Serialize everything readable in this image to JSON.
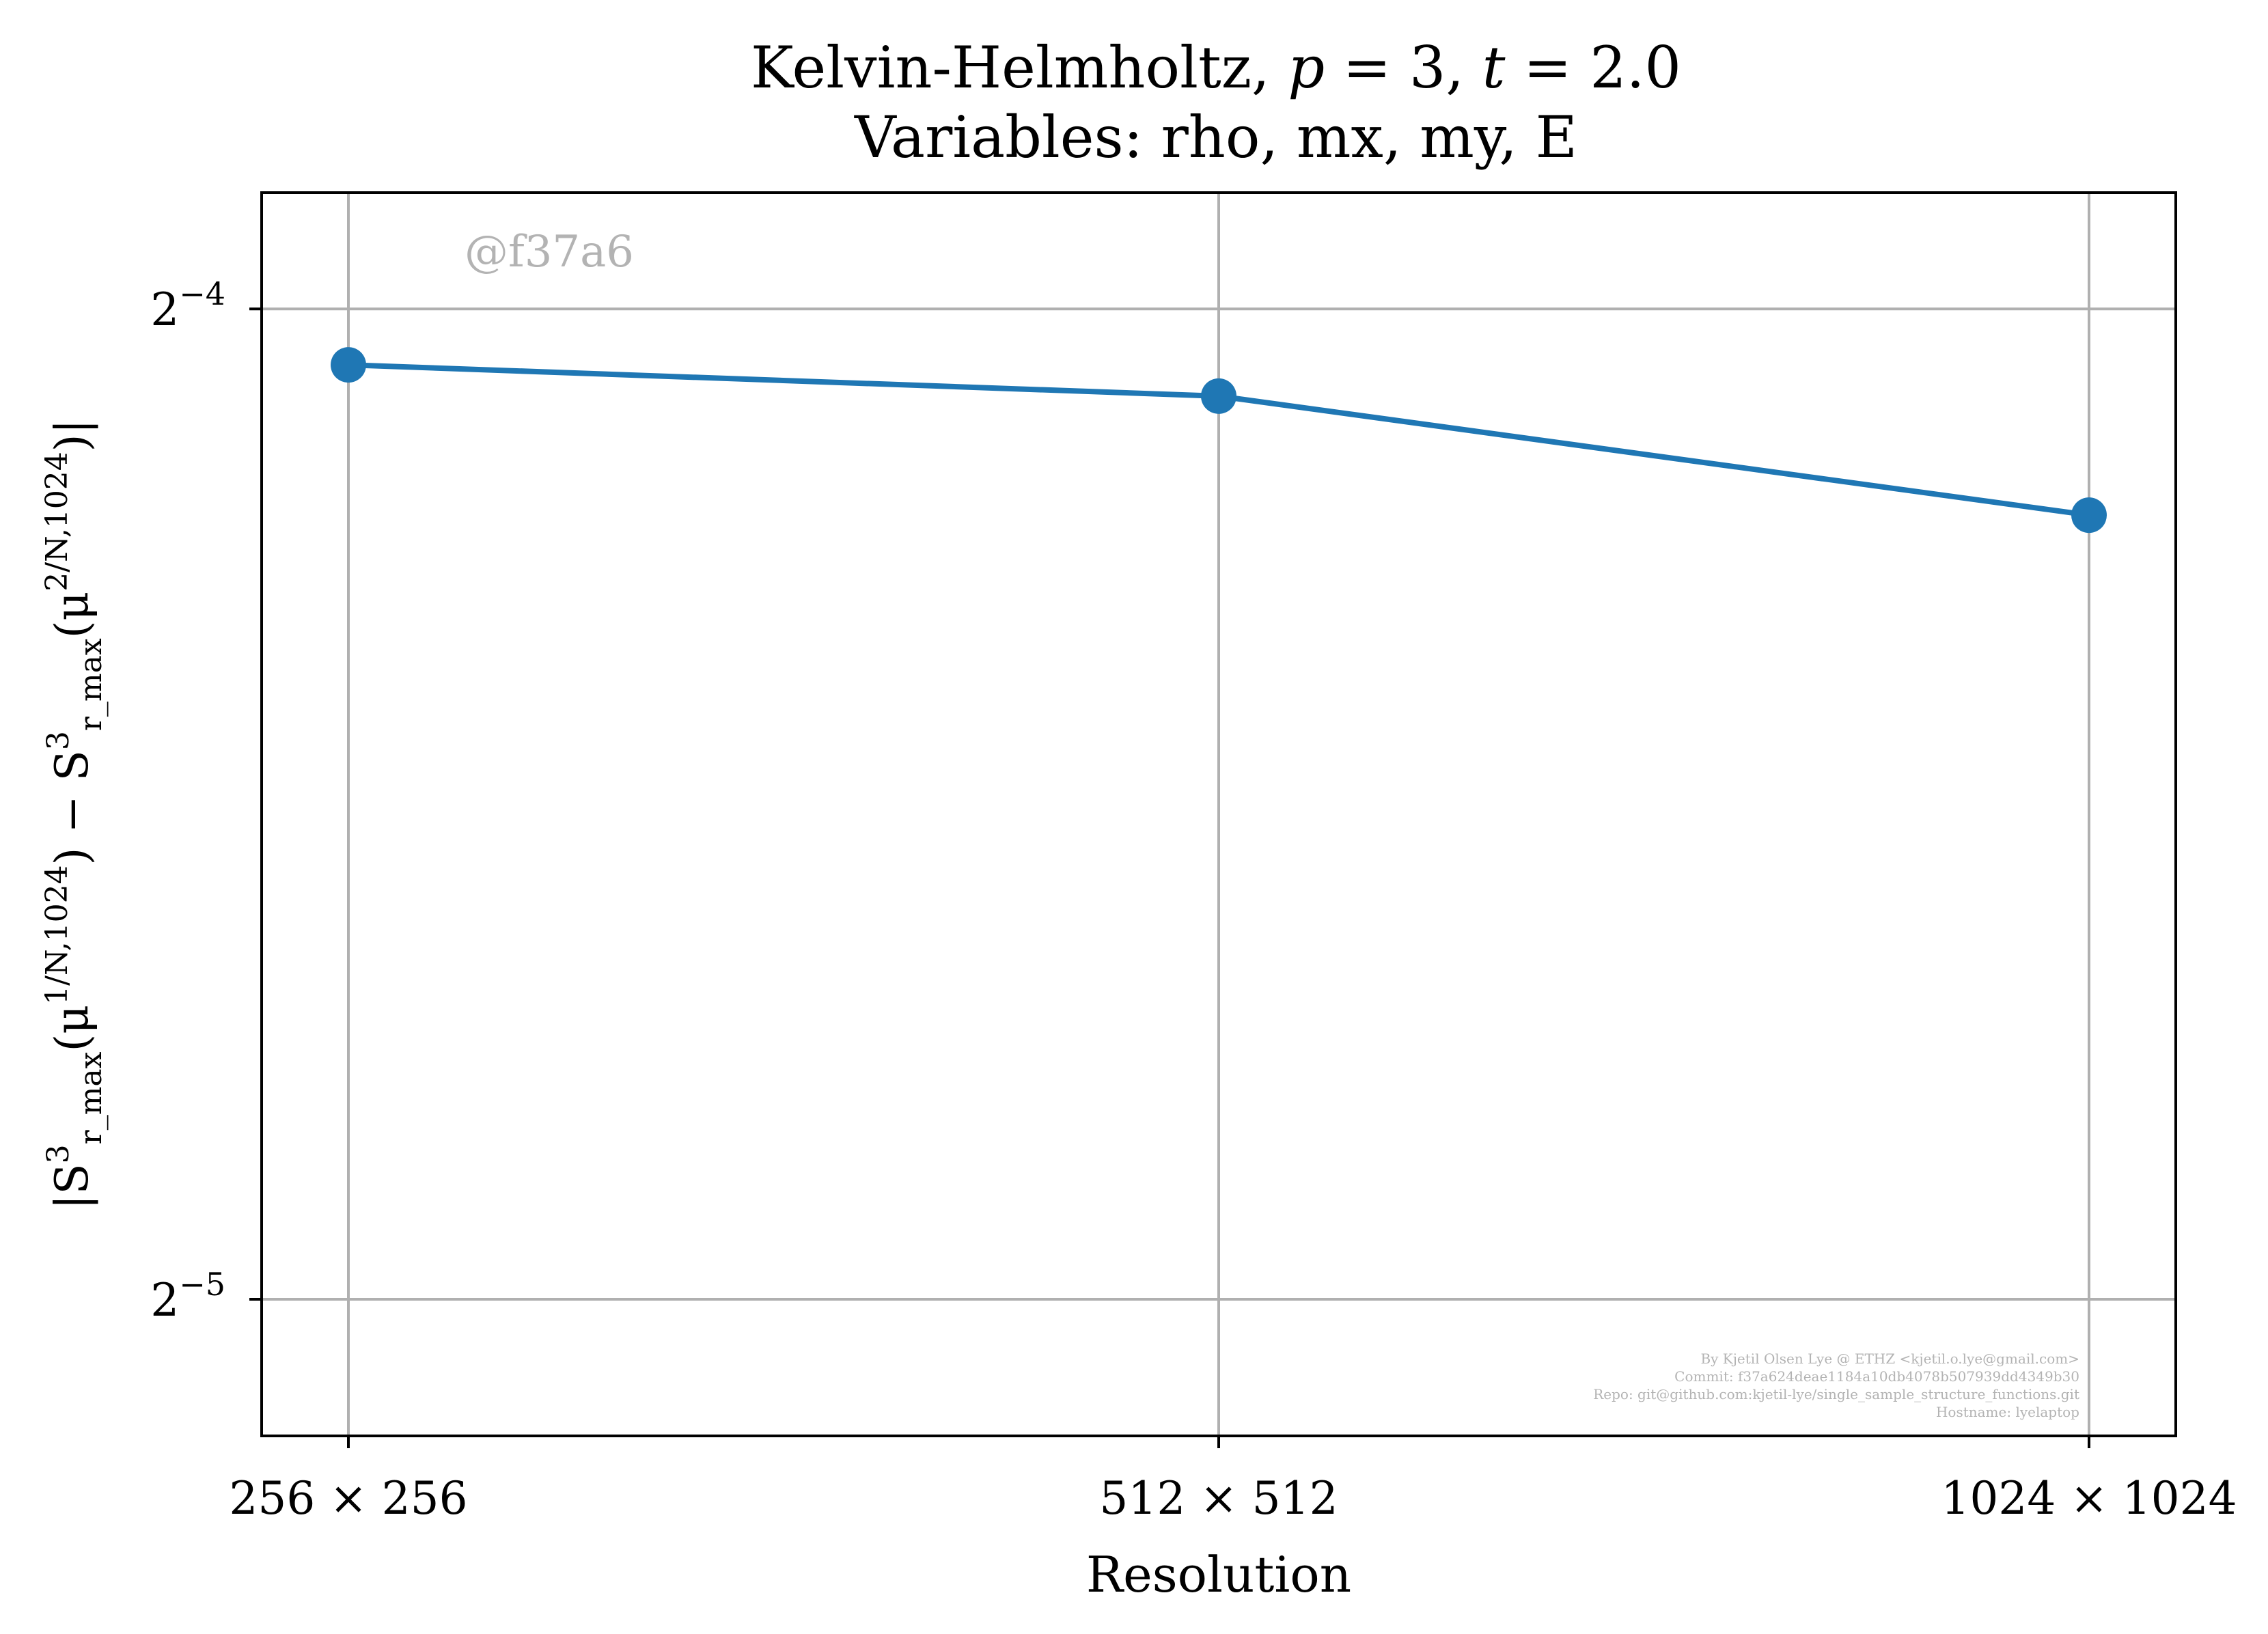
{
  "chart_data": {
    "type": "line",
    "title": [
      "Kelvin-Helmholtz, p = 3, t = 2.0",
      "Variables: rho, mx, my, E"
    ],
    "xlabel": "Resolution",
    "ylabel": {
      "main": "|S",
      "sup1": "3",
      "sub1": "r_max",
      "mid1": "(μ",
      "sup_a": "1/N,1024",
      "mid2": ") − S",
      "sup2": "3",
      "sub2": "r_max",
      "mid3": "(μ",
      "sup_b": "2/N,1024",
      "end": ")|"
    },
    "categories": [
      "256 × 256",
      "512 × 512",
      "1024 × 1024"
    ],
    "yscale": "log2",
    "yticks": [
      {
        "value": 0.03125,
        "base": "2",
        "exp": "−5"
      },
      {
        "value": 0.0625,
        "base": "2",
        "exp": "−4"
      }
    ],
    "ylim": [
      0.0284,
      0.0678
    ],
    "grid": true,
    "series": [
      {
        "color": "#1f77b4",
        "marker": "circle",
        "values": [
          0.0601,
          0.0588,
          0.0541
        ]
      }
    ]
  },
  "annotations": {
    "watermark": "@f37a6",
    "credit_lines": [
      "By Kjetil Olsen Lye @ ETHZ <kjetil.o.lye@gmail.com>",
      "Commit: f37a624deae1184a10db4078b507939dd4349b30",
      "Repo: git@github.com:kjetil-lye/single_sample_structure_functions.git",
      "Hostname: lyelaptop"
    ]
  }
}
